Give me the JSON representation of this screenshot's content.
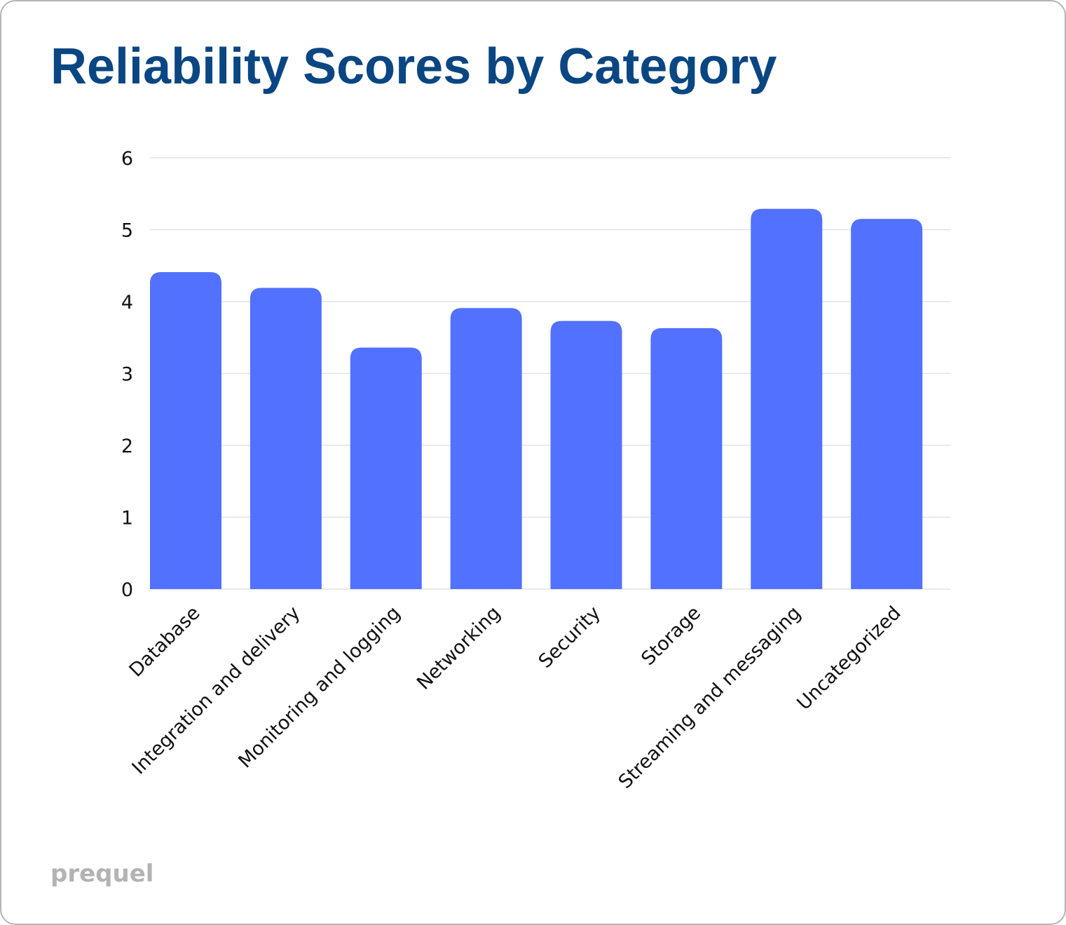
{
  "title": "Reliability Scores by Category",
  "brand": "prequel",
  "colors": {
    "bar": "#5271ff",
    "title": "#0a4682",
    "grid": "#e3e3e3",
    "brand": "#b3b3b3"
  },
  "chart_data": {
    "type": "bar",
    "title": "Reliability Scores by Category",
    "xlabel": "",
    "ylabel": "",
    "categories": [
      "Database",
      "Integration and delivery",
      "Monitoring and logging",
      "Networking",
      "Security",
      "Storage",
      "Streaming and messaging",
      "Uncategorized"
    ],
    "values": [
      4.41,
      4.19,
      3.36,
      3.91,
      3.73,
      3.63,
      5.29,
      5.15
    ],
    "ylim": [
      0,
      6
    ],
    "yticks": [
      0,
      1,
      2,
      3,
      4,
      5,
      6
    ],
    "grid": true,
    "legend": "none"
  }
}
